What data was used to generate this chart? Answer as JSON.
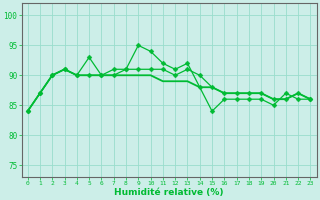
{
  "title": "",
  "xlabel": "Humidité relative (%)",
  "ylabel": "",
  "bg_color": "#cceee8",
  "grid_color": "#99ddcc",
  "line_color": "#00bb33",
  "xlim": [
    -0.5,
    23.5
  ],
  "ylim": [
    73,
    102
  ],
  "yticks": [
    75,
    80,
    85,
    90,
    95,
    100
  ],
  "xticks": [
    0,
    1,
    2,
    3,
    4,
    5,
    6,
    7,
    8,
    9,
    10,
    11,
    12,
    13,
    14,
    15,
    16,
    17,
    18,
    19,
    20,
    21,
    22,
    23
  ],
  "series1": [
    84,
    87,
    90,
    91,
    90,
    93,
    90,
    90,
    91,
    95,
    94,
    92,
    91,
    92,
    88,
    84,
    86,
    86,
    86,
    86,
    85,
    87,
    86,
    86
  ],
  "series2": [
    84,
    87,
    90,
    91,
    90,
    90,
    90,
    91,
    91,
    91,
    91,
    91,
    90,
    91,
    90,
    88,
    87,
    87,
    87,
    87,
    86,
    86,
    87,
    86
  ],
  "series3": [
    84,
    87,
    90,
    91,
    90,
    90,
    90,
    90,
    90,
    90,
    90,
    89,
    89,
    89,
    88,
    88,
    87,
    87,
    87,
    87,
    86,
    86,
    87,
    86
  ]
}
